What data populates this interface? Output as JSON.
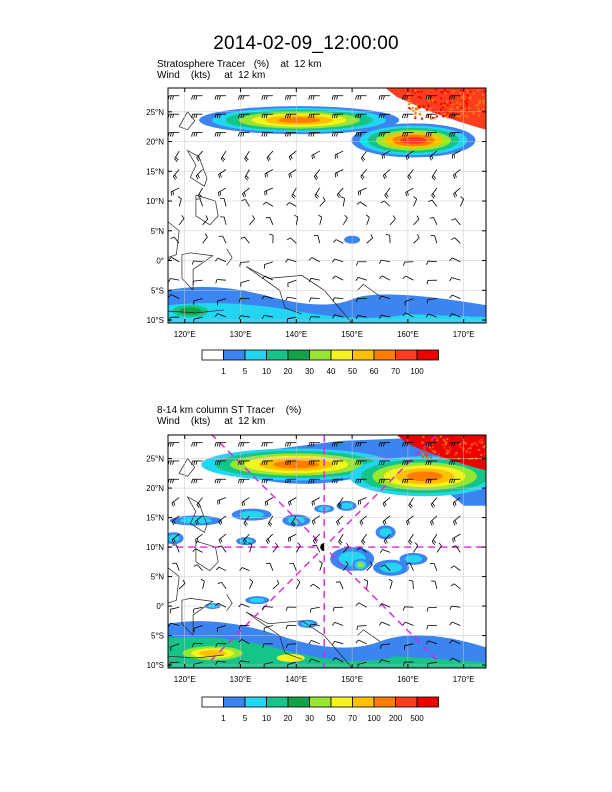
{
  "title": "2014-02-09_12:00:00",
  "chart_data": [
    {
      "type": "heatmap",
      "title": "Stratosphere Tracer   (%)    at  12 km",
      "subtitle": "Wind    (kts)     at  12 km",
      "lon_ticks": [
        120,
        130,
        140,
        150,
        160,
        170
      ],
      "lat_ticks": [
        -10,
        -5,
        0,
        5,
        10,
        15,
        20,
        25
      ],
      "lon_labels": [
        "120°E",
        "130°E",
        "140°E",
        "150°E",
        "160°E",
        "170°E"
      ],
      "lat_labels": [
        "10°S",
        "5°S",
        "0°",
        "5°N",
        "10°N",
        "15°N",
        "20°N",
        "25°N"
      ],
      "xlim": [
        117,
        174
      ],
      "ylim": [
        -10.5,
        29
      ],
      "colorbar_levels": [
        "1",
        "5",
        "10",
        "20",
        "30",
        "40",
        "50",
        "60",
        "70",
        "100"
      ],
      "colorbar_colors": [
        "#ffffff",
        "#3c84f0",
        "#22d6f2",
        "#15c487",
        "#13a347",
        "#96e632",
        "#f3f320",
        "#ffc000",
        "#ff7d00",
        "#ff3c1e",
        "#ee0000"
      ],
      "features": [
        {
          "name": "jet-band-north",
          "lon": [
            127,
            152
          ],
          "lat": [
            22,
            26
          ],
          "peak": 70
        },
        {
          "name": "jet-band-east",
          "lon": [
            152,
            172
          ],
          "lat": [
            17,
            24
          ],
          "peak": 100
        },
        {
          "name": "northeast-corner",
          "lon": [
            156,
            174
          ],
          "lat": [
            25,
            29
          ],
          "peak": 100
        },
        {
          "name": "south-band",
          "lon": [
            117,
            174
          ],
          "lat": [
            -10.5,
            -5
          ],
          "peak": 30
        }
      ]
    },
    {
      "type": "heatmap",
      "title": "8-14 km column ST Tracer    (%)",
      "subtitle": "Wind    (kts)     at  12 km",
      "lon_ticks": [
        120,
        130,
        140,
        150,
        160,
        170
      ],
      "lat_ticks": [
        -10,
        -5,
        0,
        5,
        10,
        15,
        20,
        25
      ],
      "lon_labels": [
        "120°E",
        "130°E",
        "140°E",
        "150°E",
        "160°E",
        "170°E"
      ],
      "lat_labels": [
        "10°S",
        "5°S",
        "0°",
        "5°N",
        "10°N",
        "15°N",
        "20°N",
        "25°N"
      ],
      "xlim": [
        117,
        174
      ],
      "ylim": [
        -10.5,
        29
      ],
      "colorbar_levels": [
        "1",
        "5",
        "10",
        "20",
        "30",
        "50",
        "70",
        "100",
        "200",
        "500"
      ],
      "colorbar_colors": [
        "#ffffff",
        "#3c84f0",
        "#22d6f2",
        "#15c487",
        "#13a347",
        "#96e632",
        "#f3f320",
        "#ffc000",
        "#ff7d00",
        "#ff3c1e",
        "#ee0000"
      ],
      "storm_center": {
        "lon": 145,
        "lat": 10
      },
      "features": [
        {
          "name": "jet-band",
          "lon": [
            127,
            174
          ],
          "lat": [
            19,
            28
          ],
          "peak": 200
        },
        {
          "name": "northeast-corner",
          "lon": [
            158,
            174
          ],
          "lat": [
            24,
            29
          ],
          "peak": 500
        },
        {
          "name": "mid-band",
          "lon": [
            117,
            160
          ],
          "lat": [
            10,
            17
          ],
          "peak": 10
        },
        {
          "name": "south-band",
          "lon": [
            117,
            174
          ],
          "lat": [
            -10.5,
            -4
          ],
          "peak": 50
        }
      ]
    }
  ]
}
